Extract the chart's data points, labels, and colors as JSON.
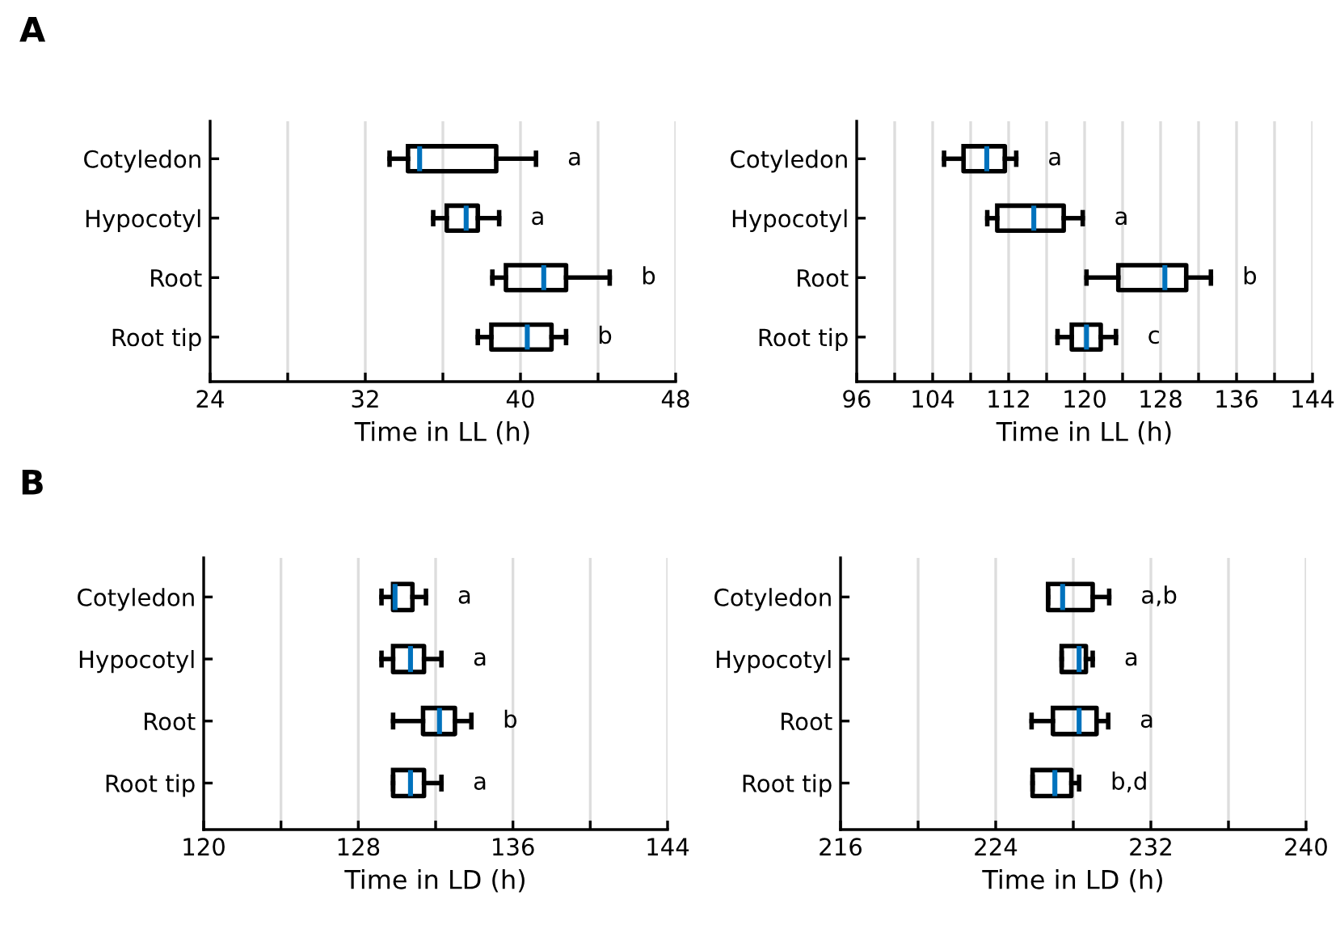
{
  "chart_data": [
    {
      "type": "box",
      "annotations": [
        "A",
        "a",
        "a",
        "b",
        "b"
      ],
      "xlabel": "Time in LL (h)",
      "orientation": "horizontal",
      "categories": [
        "Cotyledon",
        "Hypocotyl",
        "Root",
        "Root tip"
      ],
      "series": [
        {
          "color": "#000000",
          "boxes": [
            {
              "low": 33.25,
              "q1": 34.2,
              "median": 34.8,
              "q3": 38.75,
              "high": 40.8
            },
            {
              "low": 35.5,
              "q1": 36.2,
              "median": 37.2,
              "q3": 37.8,
              "high": 38.9
            },
            {
              "low": 38.55,
              "q1": 39.25,
              "median": 41.2,
              "q3": 42.35,
              "high": 44.6
            },
            {
              "low": 37.8,
              "q1": 38.5,
              "median": 40.35,
              "q3": 41.6,
              "high": 42.35
            }
          ]
        }
      ],
      "xlim": [
        24,
        48
      ],
      "xticks": [
        24,
        {
          "value": 28,
          "label": null
        },
        32,
        {
          "value": 36,
          "label": null
        },
        40,
        {
          "value": 44,
          "label": null
        },
        48
      ],
      "grid": "x"
    },
    {
      "type": "box",
      "annotations": [
        "a",
        "a",
        "b",
        "c"
      ],
      "xlabel": "Time in LL (h)",
      "orientation": "horizontal",
      "categories": [
        "Cotyledon",
        "Hypocotyl",
        "Root",
        "Root tip"
      ],
      "series": [
        {
          "color": "#000000",
          "boxes": [
            {
              "low": 105.2,
              "q1": 107.25,
              "median": 109.7,
              "q3": 111.6,
              "high": 112.8
            },
            {
              "low": 109.75,
              "q1": 110.8,
              "median": 114.65,
              "q3": 117.8,
              "high": 119.8
            },
            {
              "low": 120.2,
              "q1": 123.55,
              "median": 128.45,
              "q3": 130.7,
              "high": 133.3
            },
            {
              "low": 117.15,
              "q1": 118.65,
              "median": 120.2,
              "q3": 121.7,
              "high": 123.3
            }
          ]
        }
      ],
      "xlim": [
        96,
        144
      ],
      "xticks": [
        96,
        {
          "value": 100,
          "label": null
        },
        104,
        {
          "value": 108,
          "label": null
        },
        112,
        {
          "value": 116,
          "label": null
        },
        120,
        {
          "value": 124,
          "label": null
        },
        128,
        {
          "value": 132,
          "label": null
        },
        136,
        {
          "value": 140,
          "label": null
        },
        144
      ],
      "grid": "x"
    },
    {
      "type": "box",
      "annotations": [
        "B",
        "a",
        "a",
        "b",
        "a"
      ],
      "xlabel": "Time in LD (h)",
      "orientation": "horizontal",
      "categories": [
        "Cotyledon",
        "Hypocotyl",
        "Root",
        "Root tip"
      ],
      "series": [
        {
          "color": "#000000",
          "boxes": [
            {
              "low": 129.2,
              "q1": 129.8,
              "median": 129.9,
              "q3": 130.8,
              "high": 131.5
            },
            {
              "low": 129.2,
              "q1": 129.8,
              "median": 130.7,
              "q3": 131.4,
              "high": 132.3
            },
            {
              "low": 129.8,
              "q1": 131.35,
              "median": 132.2,
              "q3": 133.0,
              "high": 133.85
            },
            {
              "low": 129.8,
              "q1": 129.8,
              "median": 130.7,
              "q3": 131.4,
              "high": 132.3
            }
          ]
        }
      ],
      "xlim": [
        120,
        144
      ],
      "xticks": [
        120,
        {
          "value": 124,
          "label": null
        },
        128,
        {
          "value": 132,
          "label": null
        },
        136,
        {
          "value": 140,
          "label": null
        },
        144
      ],
      "grid": "x"
    },
    {
      "type": "box",
      "annotations": [
        "a,b",
        "a",
        "a",
        "b,d"
      ],
      "xlabel": "Time in LD (h)",
      "orientation": "horizontal",
      "categories": [
        "Cotyledon",
        "Hypocotyl",
        "Root",
        "Root tip"
      ],
      "series": [
        {
          "color": "#000000",
          "boxes": [
            {
              "low": 226.7,
              "q1": 226.7,
              "median": 227.45,
              "q3": 229.0,
              "high": 229.85
            },
            {
              "low": 227.4,
              "q1": 227.4,
              "median": 228.3,
              "q3": 228.65,
              "high": 229.0
            },
            {
              "low": 225.85,
              "q1": 226.95,
              "median": 228.3,
              "q3": 229.2,
              "high": 229.8
            },
            {
              "low": 225.9,
              "q1": 225.9,
              "median": 227.05,
              "q3": 227.9,
              "high": 228.3
            }
          ]
        }
      ],
      "xlim": [
        216,
        240
      ],
      "xticks": [
        216,
        {
          "value": 220,
          "label": null
        },
        224,
        {
          "value": 228,
          "label": null
        },
        232,
        {
          "value": 236,
          "label": null
        },
        240
      ],
      "grid": "x"
    }
  ]
}
